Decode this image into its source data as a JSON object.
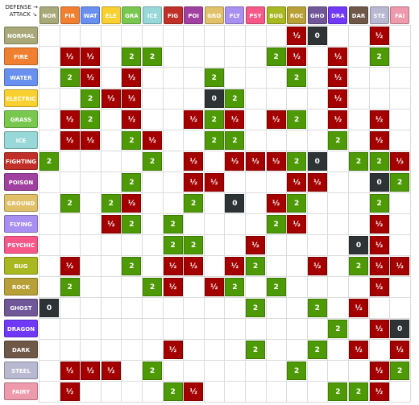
{
  "corner": {
    "defense_label": "DEFENSE →",
    "attack_label": "ATTACK ↘"
  },
  "types": [
    {
      "name": "NORMAL",
      "abbr": "NOR",
      "color": "#a8a878"
    },
    {
      "name": "FIRE",
      "abbr": "FIR",
      "color": "#f08030"
    },
    {
      "name": "WATER",
      "abbr": "WAT",
      "color": "#6890f0"
    },
    {
      "name": "ELECTRIC",
      "abbr": "ELE",
      "color": "#f8d030"
    },
    {
      "name": "GRASS",
      "abbr": "GRA",
      "color": "#78c850"
    },
    {
      "name": "ICE",
      "abbr": "ICE",
      "color": "#98d8d8"
    },
    {
      "name": "FIGHTING",
      "abbr": "FIG",
      "color": "#c03028"
    },
    {
      "name": "POISON",
      "abbr": "POI",
      "color": "#a040a0"
    },
    {
      "name": "GROUND",
      "abbr": "GRO",
      "color": "#e0c068"
    },
    {
      "name": "FLYING",
      "abbr": "FLY",
      "color": "#a890f0"
    },
    {
      "name": "PSYCHIC",
      "abbr": "PSY",
      "color": "#f85888"
    },
    {
      "name": "BUG",
      "abbr": "BUG",
      "color": "#a8b820"
    },
    {
      "name": "ROCK",
      "abbr": "ROC",
      "color": "#b8a038"
    },
    {
      "name": "GHOST",
      "abbr": "GHO",
      "color": "#705898"
    },
    {
      "name": "DRAGON",
      "abbr": "DRA",
      "color": "#7038f8"
    },
    {
      "name": "DARK",
      "abbr": "DAR",
      "color": "#705848"
    },
    {
      "name": "STEEL",
      "abbr": "STE",
      "color": "#b8b8d0"
    },
    {
      "name": "FAIRY",
      "abbr": "FAI",
      "color": "#ee99ac"
    }
  ],
  "chart_data": {
    "type": "table",
    "columns": [
      "NOR",
      "FIR",
      "WAT",
      "ELE",
      "GRA",
      "ICE",
      "FIG",
      "POI",
      "GRO",
      "FLY",
      "PSY",
      "BUG",
      "ROC",
      "GHO",
      "DRA",
      "DAR",
      "STE",
      "FAI"
    ],
    "rows": [
      "NORMAL",
      "FIRE",
      "WATER",
      "ELECTRIC",
      "GRASS",
      "ICE",
      "FIGHTING",
      "POISON",
      "GROUND",
      "FLYING",
      "PSYCHIC",
      "BUG",
      "ROCK",
      "GHOST",
      "DRAGON",
      "DARK",
      "STEEL",
      "FAIRY"
    ],
    "matrix": [
      [
        "",
        "",
        "",
        "",
        "",
        "",
        "",
        "",
        "",
        "",
        "",
        "",
        "½",
        "0",
        "",
        "",
        "½",
        ""
      ],
      [
        "",
        "½",
        "½",
        "",
        "2",
        "2",
        "",
        "",
        "",
        "",
        "",
        "2",
        "½",
        "",
        "½",
        "",
        "2",
        ""
      ],
      [
        "",
        "2",
        "½",
        "",
        "½",
        "",
        "",
        "",
        "2",
        "",
        "",
        "",
        "2",
        "",
        "½",
        "",
        "",
        ""
      ],
      [
        "",
        "",
        "2",
        "½",
        "½",
        "",
        "",
        "",
        "0",
        "2",
        "",
        "",
        "",
        "",
        "½",
        "",
        "",
        ""
      ],
      [
        "",
        "½",
        "2",
        "",
        "½",
        "",
        "",
        "½",
        "2",
        "½",
        "",
        "½",
        "2",
        "",
        "½",
        "",
        "½",
        ""
      ],
      [
        "",
        "½",
        "½",
        "",
        "2",
        "½",
        "",
        "",
        "2",
        "2",
        "",
        "",
        "",
        "",
        "2",
        "",
        "½",
        ""
      ],
      [
        "2",
        "",
        "",
        "",
        "",
        "2",
        "",
        "½",
        "",
        "½",
        "½",
        "½",
        "2",
        "0",
        "",
        "2",
        "2",
        "½"
      ],
      [
        "",
        "",
        "",
        "",
        "2",
        "",
        "",
        "½",
        "½",
        "",
        "",
        "",
        "½",
        "½",
        "",
        "",
        "0",
        "2"
      ],
      [
        "",
        "2",
        "",
        "2",
        "½",
        "",
        "",
        "2",
        "",
        "0",
        "",
        "½",
        "2",
        "",
        "",
        "",
        "2",
        ""
      ],
      [
        "",
        "",
        "",
        "½",
        "2",
        "",
        "2",
        "",
        "",
        "",
        "",
        "2",
        "½",
        "",
        "",
        "",
        "½",
        ""
      ],
      [
        "",
        "",
        "",
        "",
        "",
        "",
        "2",
        "2",
        "",
        "",
        "½",
        "",
        "",
        "",
        "",
        "0",
        "½",
        ""
      ],
      [
        "",
        "½",
        "",
        "",
        "2",
        "",
        "½",
        "½",
        "",
        "½",
        "2",
        "",
        "",
        "½",
        "",
        "2",
        "½",
        "½"
      ],
      [
        "",
        "2",
        "",
        "",
        "",
        "2",
        "½",
        "",
        "½",
        "2",
        "",
        "2",
        "",
        "",
        "",
        "",
        "½",
        ""
      ],
      [
        "0",
        "",
        "",
        "",
        "",
        "",
        "",
        "",
        "",
        "",
        "2",
        "",
        "",
        "2",
        "",
        "½",
        "",
        ""
      ],
      [
        "",
        "",
        "",
        "",
        "",
        "",
        "",
        "",
        "",
        "",
        "",
        "",
        "",
        "",
        "2",
        "",
        "½",
        "0"
      ],
      [
        "",
        "",
        "",
        "",
        "",
        "",
        "½",
        "",
        "",
        "",
        "2",
        "",
        "",
        "2",
        "",
        "½",
        "",
        "½"
      ],
      [
        "",
        "½",
        "½",
        "½",
        "",
        "2",
        "",
        "",
        "",
        "",
        "",
        "",
        "2",
        "",
        "",
        "",
        "½",
        "2"
      ],
      [
        "",
        "½",
        "",
        "",
        "",
        "",
        "2",
        "½",
        "",
        "",
        "",
        "",
        "",
        "",
        "2",
        "2",
        "½",
        ""
      ]
    ]
  }
}
